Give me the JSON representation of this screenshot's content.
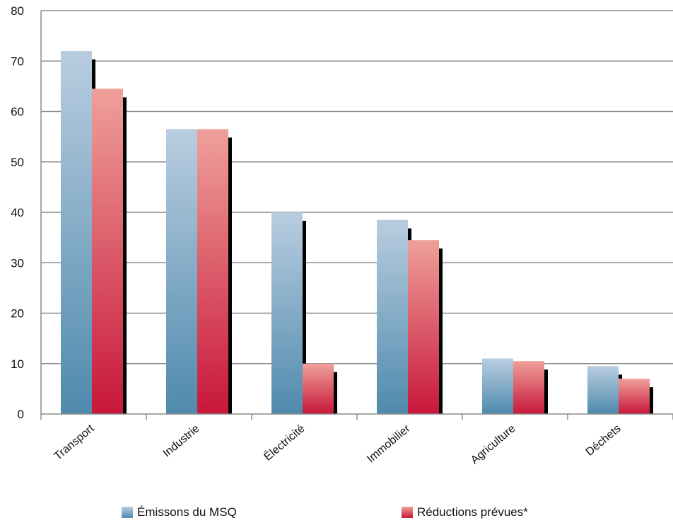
{
  "chart_data": {
    "type": "bar",
    "title": "",
    "xlabel": "",
    "ylabel": "",
    "ylim": [
      0,
      80
    ],
    "yticks": [
      0,
      10,
      20,
      30,
      40,
      50,
      60,
      70,
      80
    ],
    "grid": true,
    "legend_position": "bottom",
    "categories": [
      "Transport",
      "Industrie",
      "Électricité",
      "Immobilier",
      "Agriculture",
      "Déchets"
    ],
    "series": [
      {
        "name": "Émissons du MSQ",
        "values": [
          72,
          56.5,
          40,
          38.5,
          11,
          9.5
        ],
        "color_top": "#b9cde0",
        "color_bottom": "#4f8aad"
      },
      {
        "name": "Réductions prévues*",
        "values": [
          64.5,
          56.5,
          10,
          34.5,
          10.5,
          7
        ],
        "color_top": "#efa09a",
        "color_bottom": "#c8173a"
      }
    ]
  }
}
